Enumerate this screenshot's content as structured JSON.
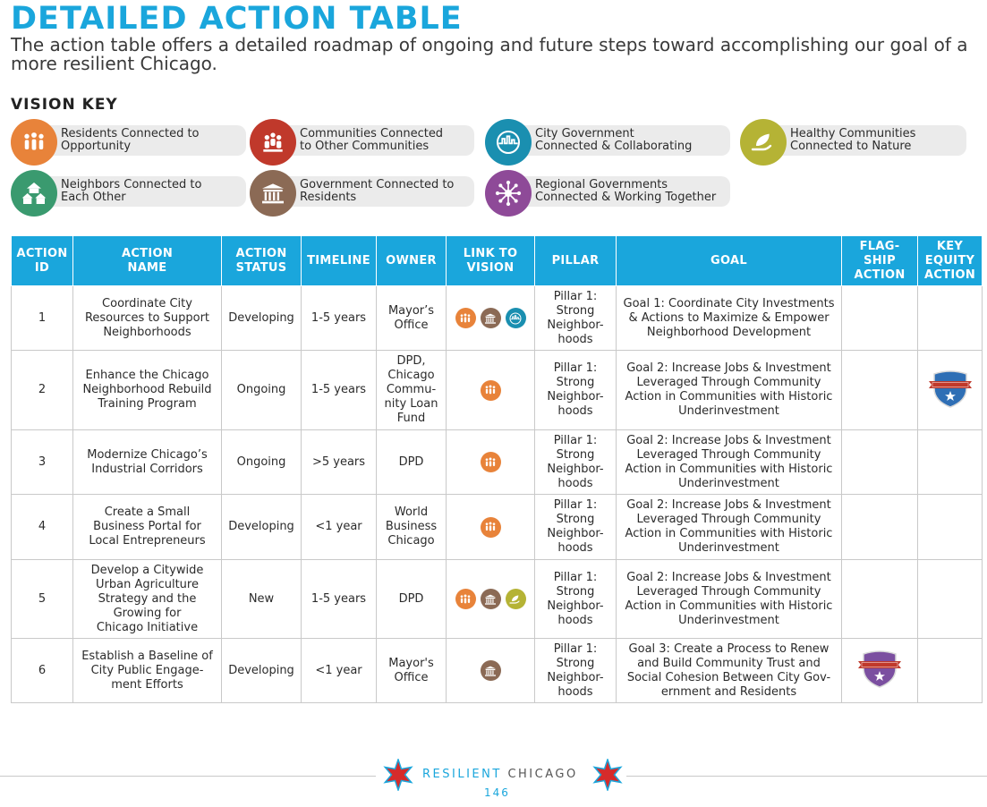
{
  "header": {
    "title": "DETAILED ACTION TABLE",
    "subtitle": "The action table offers a detailed roadmap of ongoing and future steps toward accomplishing our goal of a more resilient Chicago."
  },
  "vision_key": {
    "heading": "VISION KEY",
    "items": [
      {
        "line1": "Residents Connected to",
        "line2": "Opportunity",
        "icon": "residents-icon",
        "color": "#e8833a"
      },
      {
        "line1": "Communities Connected",
        "line2": "to Other Communities",
        "icon": "communities-icon",
        "color": "#c0392b"
      },
      {
        "line1": "City Government",
        "line2": "Connected & Collaborating",
        "icon": "city-government-icon",
        "color": "#1a8fb0"
      },
      {
        "line1": "Healthy Communities",
        "line2": "Connected to Nature",
        "icon": "nature-icon",
        "color": "#b5b335"
      },
      {
        "line1": "Neighbors Connected to",
        "line2": "Each Other",
        "icon": "neighbors-icon",
        "color": "#3a9a6f"
      },
      {
        "line1": "Government Connected to",
        "line2": "Residents",
        "icon": "government-icon",
        "color": "#8b6a55"
      },
      {
        "line1": "Regional Governments",
        "line2": "Connected & Working Together",
        "icon": "regional-icon",
        "color": "#8e4a98"
      }
    ]
  },
  "table": {
    "headers": {
      "action_id": [
        "ACTION",
        "ID"
      ],
      "action_name": [
        "ACTION",
        "NAME"
      ],
      "action_status": [
        "ACTION",
        "STATUS"
      ],
      "timeline": [
        "TIMELINE"
      ],
      "owner": [
        "OWNER"
      ],
      "link_to_vision": [
        "LINK TO",
        "VISION"
      ],
      "pillar": [
        "PILLAR"
      ],
      "goal": [
        "GOAL"
      ],
      "flagship": [
        "FLAG-",
        "SHIP",
        "ACTION"
      ],
      "key_equity": [
        "KEY",
        "EQUITY",
        "ACTION"
      ]
    },
    "rows": [
      {
        "id": "1",
        "name": [
          "Coordinate City",
          "Resources to Support",
          "Neighborhoods"
        ],
        "status": "Developing",
        "timeline": "1-5 years",
        "owner": [
          "Mayor’s",
          "Office"
        ],
        "vision": [
          "residents-icon",
          "government-icon",
          "city-government-icon"
        ],
        "pillar": [
          "Pillar 1:",
          "Strong",
          "Neighbor-",
          "hoods"
        ],
        "goal": [
          "Goal 1: Coordinate City Investments",
          "& Actions to Maximize & Empower",
          "Neighborhood Development"
        ],
        "flagship": false,
        "key_equity": false
      },
      {
        "id": "2",
        "name": [
          "Enhance the Chicago",
          "Neighborhood Rebuild",
          "Training Program"
        ],
        "status": "Ongoing",
        "timeline": "1-5 years",
        "owner": [
          "DPD,",
          "Chicago",
          "Commu-",
          "nity Loan",
          "Fund"
        ],
        "vision": [
          "residents-icon"
        ],
        "pillar": [
          "Pillar 1:",
          "Strong",
          "Neighbor-",
          "hoods"
        ],
        "goal": [
          "Goal 2: Increase Jobs & Investment",
          "Leveraged Through Community",
          "Action in Communities with Historic",
          "Underinvestment"
        ],
        "flagship": false,
        "key_equity": true
      },
      {
        "id": "3",
        "name": [
          "Modernize Chicago’s",
          "Industrial Corridors"
        ],
        "status": "Ongoing",
        "timeline": ">5 years",
        "owner": [
          "DPD"
        ],
        "vision": [
          "residents-icon"
        ],
        "pillar": [
          "Pillar 1:",
          "Strong",
          "Neighbor-",
          "hoods"
        ],
        "goal": [
          "Goal 2: Increase Jobs & Investment",
          "Leveraged Through Community",
          "Action in Communities with Historic",
          "Underinvestment"
        ],
        "flagship": false,
        "key_equity": false
      },
      {
        "id": "4",
        "name": [
          "Create a Small",
          "Business Portal for",
          "Local Entrepreneurs"
        ],
        "status": "Developing",
        "timeline": "<1 year",
        "owner": [
          "World",
          "Business",
          "Chicago"
        ],
        "vision": [
          "residents-icon"
        ],
        "pillar": [
          "Pillar 1:",
          "Strong",
          "Neighbor-",
          "hoods"
        ],
        "goal": [
          "Goal 2: Increase Jobs & Investment",
          "Leveraged Through Community",
          "Action in Communities with Historic",
          "Underinvestment"
        ],
        "flagship": false,
        "key_equity": false
      },
      {
        "id": "5",
        "name": [
          "Develop a Citywide",
          "Urban Agriculture",
          "Strategy and the",
          "Growing for",
          "Chicago Initiative"
        ],
        "status": "New",
        "timeline": "1-5 years",
        "owner": [
          "DPD"
        ],
        "vision": [
          "residents-icon",
          "government-icon",
          "nature-icon"
        ],
        "pillar": [
          "Pillar 1:",
          "Strong",
          "Neighbor-",
          "hoods"
        ],
        "goal": [
          "Goal 2: Increase Jobs & Investment",
          "Leveraged Through Community",
          "Action in Communities with Historic",
          "Underinvestment"
        ],
        "flagship": false,
        "key_equity": false
      },
      {
        "id": "6",
        "name": [
          "Establish a Baseline of",
          "City Public Engage-",
          "ment Efforts"
        ],
        "status": "Developing",
        "timeline": "<1 year",
        "owner": [
          "Mayor's",
          "Office"
        ],
        "vision": [
          "government-icon"
        ],
        "pillar": [
          "Pillar 1:",
          "Strong",
          "Neighbor-",
          "hoods"
        ],
        "goal": [
          "Goal 3: Create a Process to Renew",
          "and Build Community Trust and",
          "Social Cohesion Between City Gov-",
          "ernment and Residents"
        ],
        "flagship": true,
        "key_equity": false
      }
    ]
  },
  "footer": {
    "brand_part1": "RESILIENT",
    "brand_part2": "CHICAGO",
    "page_number": "146"
  },
  "colors": {
    "accent": "#1aa6dc",
    "equity_badge": "#2f6fb5",
    "flagship_badge": "#7b4fa0",
    "ribbon": "#c0392b",
    "star": "#d62b2b"
  }
}
